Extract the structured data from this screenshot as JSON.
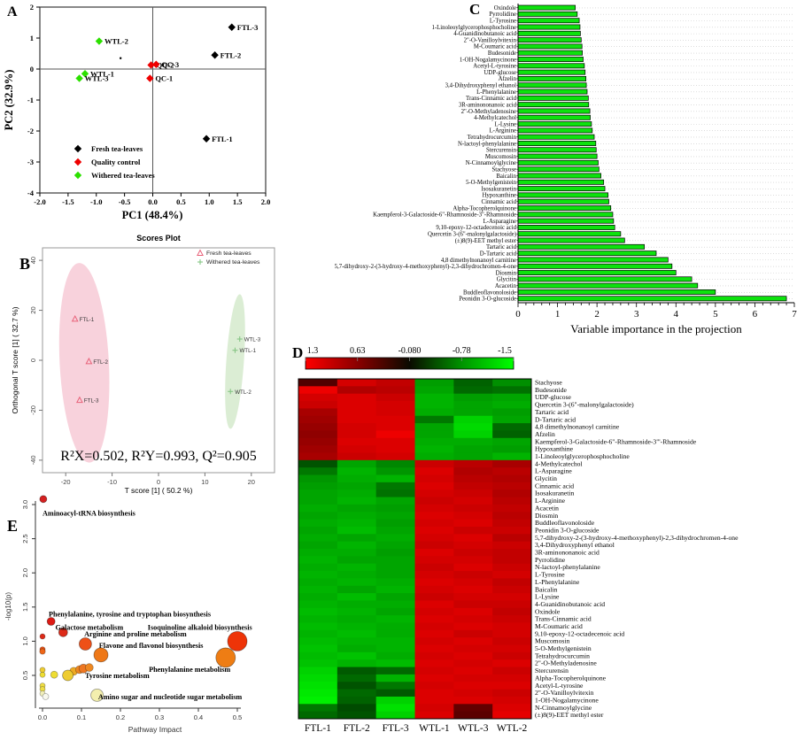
{
  "chart_data": [
    {
      "panel": "A",
      "type": "scatter",
      "xlabel": "PC1 (48.4%)",
      "ylabel": "PC2 (32.9%)",
      "xlim": [
        -2.0,
        2.0
      ],
      "ylim": [
        -4,
        2
      ],
      "xtick_labels": [
        "-2.0",
        "-1.5",
        "-1.0",
        "-0.5",
        "0.0",
        "0.5",
        "1.0",
        "1.5",
        "2.0"
      ],
      "xticks": [
        -2.0,
        -1.5,
        -1.0,
        -0.5,
        0.0,
        0.5,
        1.0,
        1.5,
        2.0
      ],
      "ytick_labels": [
        "-4",
        "-3",
        "-2",
        "-1",
        "0",
        "1",
        "2"
      ],
      "yticks": [
        -4,
        -3,
        -2,
        -1,
        0,
        1,
        2
      ],
      "legend": [
        {
          "label": "Fresh tea-leaves",
          "color": "#000000"
        },
        {
          "label": "Quality control",
          "color": "#ee0000"
        },
        {
          "label": "Withered tea-leaves",
          "color": "#2ce000"
        }
      ],
      "points": [
        {
          "label": "FTL-3",
          "x": 1.4,
          "y": 1.35,
          "color": "#000000"
        },
        {
          "label": "FTL-2",
          "x": 1.1,
          "y": 0.45,
          "color": "#000000"
        },
        {
          "label": "FTL-1",
          "x": 0.95,
          "y": -2.25,
          "color": "#000000"
        },
        {
          "label": "WTL-2",
          "x": -0.95,
          "y": 0.9,
          "color": "#2ce000"
        },
        {
          "label": "WTL-1",
          "x": -1.2,
          "y": -0.15,
          "color": "#2ce000"
        },
        {
          "label": "WTL-3",
          "x": -1.3,
          "y": -0.3,
          "color": "#2ce000"
        },
        {
          "label": "QC-2",
          "x": -0.03,
          "y": 0.13,
          "color": "#ee0000"
        },
        {
          "label": "QC-3",
          "x": 0.06,
          "y": 0.15,
          "color": "#ee0000"
        },
        {
          "label": "QC-1",
          "x": -0.05,
          "y": -0.3,
          "color": "#ee0000"
        }
      ],
      "stray_dot": {
        "x": -0.57,
        "y": 0.35
      }
    },
    {
      "panel": "B",
      "type": "scatter",
      "title": "Scores Plot",
      "xlabel": "T score [1] ( 50.2 %)",
      "ylabel": "Orthogonal T score [1] ( 32.7 %)",
      "xlim": [
        -25,
        25
      ],
      "ylim": [
        -45,
        45
      ],
      "xticks": [
        -20,
        -10,
        0,
        10,
        20
      ],
      "yticks": [
        -40,
        -20,
        0,
        20,
        40
      ],
      "annotation": "R²X=0.502, R²Y=0.993, Q²=0.905",
      "legend": [
        {
          "label": "Fresh tea-leaves",
          "marker": "triangle",
          "color": "#e8637a"
        },
        {
          "label": "Withered tea-leaves",
          "marker": "plus",
          "color": "#86c585"
        }
      ],
      "groups": {
        "FTL": {
          "marker": "triangle",
          "color": "#e8637a",
          "ellipse_fill": "#f5c3d0"
        },
        "WTL": {
          "marker": "plus",
          "color": "#86c585",
          "ellipse_fill": "#cfe7c6"
        }
      },
      "ellipses": [
        {
          "cx": -16,
          "cy": -1,
          "rx": 5.3,
          "ry": 40,
          "rot": -3,
          "fill": "#f5c3d0"
        },
        {
          "cx": 16.5,
          "cy": -0.5,
          "rx": 1.9,
          "ry": 27,
          "rot": 4,
          "fill": "#cfe7c6"
        }
      ],
      "points": [
        {
          "label": "FTL-1",
          "x": -18,
          "y": 16.5,
          "group": "FTL"
        },
        {
          "label": "FTL-2",
          "x": -15,
          "y": -0.5,
          "group": "FTL"
        },
        {
          "label": "FTL-3",
          "x": -17,
          "y": -16,
          "group": "FTL"
        },
        {
          "label": "WTL-3",
          "x": 17.5,
          "y": 8.5,
          "group": "WTL"
        },
        {
          "label": "WTL-1",
          "x": 16.5,
          "y": 4,
          "group": "WTL"
        },
        {
          "label": "WTL-2",
          "x": 15.5,
          "y": -12.5,
          "group": "WTL"
        }
      ]
    },
    {
      "panel": "C",
      "type": "bar",
      "xlabel": "Variable importance in the projection",
      "xlim": [
        0,
        7
      ],
      "xticks": [
        0,
        1,
        2,
        3,
        4,
        5,
        6,
        7
      ],
      "bar_color": "#0de20d",
      "categories": [
        "Oxindole",
        "Pyrrolidine",
        "L-Tyrosine",
        "1-Linoleoylglycerophosphocholine",
        "4-Guanidinobutanoic acid",
        "2\"-O-Vanilloylvitexin",
        "M-Coumaric acid",
        "Budesonide",
        "1-OH-Nogalamycinone",
        "Acetyl-L-tyrosine",
        "UDP-glucose",
        "Afzelin",
        "3,4-Dihydroxyphenyl ethanol",
        "L-Phenylalanine",
        "Trans-Cinnamic acid",
        "3R-aminononanoic acid",
        "2\"-O-Methyladenosine",
        "4-Methylcatechol",
        "L-Lysine",
        "L-Arginine",
        "Tetrahydrocurcumin",
        "N-lactoyl-phenylalanine",
        "Stercurensin",
        "Muscomosin",
        "N-Cinnamoylglycine",
        "Stachyose",
        "Baicalin",
        "5-O-Methylgenistein",
        "Isosakuranetin",
        "Hypoxanthine",
        "Cinnamic acid",
        "Alpha-Tocopherolquinone",
        "Kaempferol-3-Galactoside-6\"-Rhamnoside-3\"-Rhamnoside",
        "L-Asparagine",
        "9,10-epoxy-12-octadecenoic acid",
        "Quercetin 3-(6\"-malonylgalactoside)",
        "(±)8(9)-EET methyl ester",
        "Tartaric acid",
        "D-Tartaric acid",
        "4,8 dimethylnonanoyl carnitine",
        "5,7-dihydroxy-2-(3-hydroxy-4-methoxyphenyl)-2,3-dihydrochromen-4-one",
        "Diosmin",
        "Glycitin",
        "Acacetin",
        "Buddleoflavonoloside",
        "Peonidin 3-O-glucoside"
      ],
      "values": [
        1.45,
        1.5,
        1.55,
        1.57,
        1.58,
        1.6,
        1.62,
        1.63,
        1.65,
        1.68,
        1.7,
        1.72,
        1.73,
        1.75,
        1.78,
        1.79,
        1.82,
        1.83,
        1.86,
        1.88,
        1.93,
        1.97,
        1.98,
        2.0,
        2.03,
        2.05,
        2.1,
        2.17,
        2.2,
        2.28,
        2.3,
        2.35,
        2.4,
        2.42,
        2.45,
        2.6,
        2.7,
        3.2,
        3.5,
        3.8,
        3.9,
        4.0,
        4.4,
        4.55,
        5.0,
        6.8
      ]
    },
    {
      "panel": "D",
      "type": "heatmap",
      "scale_tick_labels": [
        "1.3",
        "0.63",
        "-0.080",
        "-0.78",
        "-1.5"
      ],
      "vmax": 1.3,
      "vmin": -1.5,
      "columns": [
        "FTL-1",
        "FTL-2",
        "FTL-3",
        "WTL-1",
        "WTL-3",
        "WTL-2"
      ],
      "rows": [
        "Stachyose",
        "Budesonide",
        "UDP-glucose",
        "Quercetin 3-(6\"-malonylgalactoside)",
        "Tartaric acid",
        "D-Tartaric acid",
        "4,8 dimethylnonanoyl carnitine",
        "Afzelin",
        "Kaempferol-3-Galactoside-6\"-Rhamnoside-3\"'-Rhamnoside",
        "Hypoxanthine",
        "1-Linoleoylglycerophosphocholine",
        "4-Methylcatechol",
        "L-Asparagine",
        "Glycitin",
        "Cinnamic acid",
        "Isosakuranetin",
        "L-Arginine",
        "Acacetin",
        "Diosmin",
        "Buddleoflavonoloside",
        "Peonidin 3-O-glucoside",
        "5,7-dihydroxy-2-(3-hydroxy-4-methoxyphenyl)-2,3-dihydrochromen-4-one",
        "3,4-Dihydroxyphenyl ethanol",
        "3R-aminononanoic acid",
        "Pyrrolidine",
        "N-lactoyl-phenylalanine",
        "L-Tyrosine",
        "L-Phenylalanine",
        "Baicalin",
        "L-Lysine",
        "4-Guanidinobutanoic acid",
        "Oxindole",
        "Trans-Cinnamic acid",
        "M-Coumaric acid",
        "9,10-epoxy-12-octadecenoic acid",
        "Muscomosin",
        "5-O-Methylgenistein",
        "Tetrahydrocurcumin",
        "2\"-O-Methyladenosine",
        "Stercurensin",
        "Alpha-Tocopherolquinone",
        "Acetyl-L-tyrosine",
        "2\"-O-Vanilloylvitexin",
        "1-OH-Nogalamycinone",
        "N-Cinnamoylglycine",
        "(±)8(9)-EET methyl ester"
      ],
      "matrix": [
        [
          0.3,
          1.05,
          0.95,
          -0.85,
          -0.45,
          -0.75
        ],
        [
          1.2,
          0.85,
          0.9,
          -0.9,
          -0.5,
          -0.55
        ],
        [
          1.05,
          1.1,
          1.0,
          -1.0,
          -0.85,
          -0.9
        ],
        [
          1.0,
          1.1,
          1.05,
          -1.0,
          -0.9,
          -0.95
        ],
        [
          0.8,
          1.1,
          1.05,
          -0.95,
          -0.9,
          -0.85
        ],
        [
          0.75,
          1.1,
          1.1,
          -0.6,
          -1.2,
          -0.9
        ],
        [
          0.7,
          1.05,
          1.1,
          -0.9,
          -1.25,
          -0.5
        ],
        [
          0.65,
          1.05,
          1.2,
          -0.9,
          -1.2,
          -0.45
        ],
        [
          0.7,
          1.1,
          1.1,
          -0.95,
          -0.95,
          -0.9
        ],
        [
          0.75,
          1.05,
          1.1,
          -1.0,
          -0.9,
          -0.85
        ],
        [
          0.8,
          1.0,
          1.05,
          -0.95,
          -0.9,
          -1.0
        ],
        [
          -0.35,
          -0.9,
          -0.7,
          1.0,
          0.9,
          0.8
        ],
        [
          -0.6,
          -1.0,
          -0.8,
          1.1,
          0.85,
          0.9
        ],
        [
          -0.8,
          -0.95,
          -1.0,
          1.05,
          0.9,
          0.85
        ],
        [
          -0.85,
          -0.9,
          -0.6,
          1.1,
          0.95,
          0.9
        ],
        [
          -0.9,
          -0.95,
          -0.55,
          1.05,
          1.0,
          0.85
        ],
        [
          -0.9,
          -1.0,
          -0.9,
          1.0,
          1.05,
          0.9
        ],
        [
          -0.95,
          -0.9,
          -0.85,
          1.05,
          1.0,
          0.95
        ],
        [
          -0.9,
          -0.95,
          -0.9,
          1.1,
          1.05,
          0.9
        ],
        [
          -0.95,
          -1.0,
          -0.85,
          1.05,
          1.1,
          0.95
        ],
        [
          -0.9,
          -1.05,
          -0.9,
          1.1,
          1.0,
          1.0
        ],
        [
          -0.95,
          -0.9,
          -0.95,
          1.05,
          1.1,
          0.9
        ],
        [
          -0.9,
          -1.0,
          -0.9,
          1.0,
          1.05,
          1.0
        ],
        [
          -0.95,
          -0.95,
          -0.85,
          1.1,
          1.0,
          0.95
        ],
        [
          -1.0,
          -0.9,
          -0.9,
          1.05,
          1.05,
          0.95
        ],
        [
          -0.95,
          -1.0,
          -0.9,
          1.0,
          1.1,
          1.0
        ],
        [
          -1.0,
          -0.95,
          -0.9,
          1.05,
          1.0,
          1.05
        ],
        [
          -0.95,
          -1.0,
          -0.95,
          1.1,
          1.05,
          0.95
        ],
        [
          -1.0,
          -0.9,
          -1.0,
          1.05,
          1.1,
          1.0
        ],
        [
          -0.95,
          -1.05,
          -0.9,
          1.0,
          1.05,
          1.05
        ],
        [
          -1.0,
          -0.95,
          -0.95,
          1.1,
          1.0,
          1.0
        ],
        [
          -1.05,
          -1.0,
          -0.9,
          1.05,
          1.1,
          0.95
        ],
        [
          -1.0,
          -0.95,
          -1.0,
          1.1,
          1.05,
          1.0
        ],
        [
          -1.05,
          -1.0,
          -0.95,
          1.05,
          1.1,
          1.05
        ],
        [
          -1.0,
          -1.05,
          -0.95,
          1.1,
          1.0,
          1.05
        ],
        [
          -1.05,
          -1.0,
          -1.0,
          1.05,
          1.1,
          1.0
        ],
        [
          -1.1,
          -0.95,
          -1.0,
          1.1,
          1.05,
          1.05
        ],
        [
          -1.05,
          -1.1,
          -0.95,
          1.05,
          1.1,
          1.0
        ],
        [
          -1.1,
          -1.0,
          -1.05,
          1.1,
          1.05,
          1.1
        ],
        [
          -1.2,
          -0.4,
          -0.5,
          1.05,
          1.1,
          1.0
        ],
        [
          -1.25,
          -0.5,
          -1.0,
          1.1,
          1.05,
          1.05
        ],
        [
          -1.3,
          -0.35,
          -0.6,
          1.05,
          1.1,
          1.1
        ],
        [
          -1.35,
          -0.5,
          -0.4,
          1.1,
          1.05,
          1.0
        ],
        [
          -1.4,
          -0.45,
          -1.2,
          1.1,
          1.1,
          1.05
        ],
        [
          -0.6,
          -0.3,
          -1.3,
          1.05,
          0.4,
          1.1
        ],
        [
          -0.5,
          -0.35,
          -1.2,
          1.1,
          0.35,
          1.15
        ]
      ]
    },
    {
      "panel": "E",
      "type": "scatter",
      "xlabel": "Pathway Impact",
      "ylabel": "-log10(p)",
      "xlim": [
        0,
        0.55
      ],
      "ylim": [
        0,
        3.2
      ],
      "xtick_labels": [
        "0.0",
        "0.1",
        "0.2",
        "0.3",
        "0.4",
        "0.5"
      ],
      "xticks": [
        0.0,
        0.1,
        0.2,
        0.3,
        0.4,
        0.5
      ],
      "ytick_labels": [
        "0.5",
        "1.0",
        "1.5",
        "2.0",
        "2.5",
        "3.0"
      ],
      "yticks": [
        0.5,
        1.0,
        1.5,
        2.0,
        2.5,
        3.0
      ],
      "labeled_points": [
        {
          "label": "Aminoacyl-tRNA biosynthesis",
          "x": 0.002,
          "y": 3.08,
          "r": 4,
          "color": "#d42020",
          "lx": 0.0,
          "ly": 2.84
        },
        {
          "label": "Phenylalanine, tyrosine and tryptophan biosynthesis",
          "x": 0.022,
          "y": 1.29,
          "r": 4.5,
          "color": "#dd1a14",
          "lx": 0.016,
          "ly": 1.36
        },
        {
          "label": "Galactose metabolism",
          "x": 0.053,
          "y": 1.13,
          "r": 5,
          "color": "#dd2a18",
          "lx": 0.033,
          "ly": 1.17
        },
        {
          "label": "Isoquinoline alkaloid biosynthesis",
          "x": 0.5,
          "y": 1.0,
          "r": 11,
          "color": "#ee3408",
          "lx": 0.27,
          "ly": 1.165
        },
        {
          "label": "Arginine and proline metabolism",
          "x": 0.11,
          "y": 0.96,
          "r": 7,
          "color": "#ee5018",
          "lx": 0.107,
          "ly": 1.07
        },
        {
          "label": "Flavone and flavonol biosynthesis",
          "x": 0.15,
          "y": 0.8,
          "r": 8,
          "color": "#ee7818",
          "lx": 0.145,
          "ly": 0.9
        },
        {
          "label": "Phenylalanine metabolism",
          "x": 0.47,
          "y": 0.76,
          "r": 11,
          "color": "#ee7d14",
          "lx": 0.273,
          "ly": 0.552
        },
        {
          "label": "Tyrosine metabolism",
          "x": 0.065,
          "y": 0.5,
          "r": 6,
          "color": "#eecc30",
          "lx": 0.109,
          "ly": 0.462
        },
        {
          "label": "Amino sugar and nucleotide sugar metabolism",
          "x": 0.14,
          "y": 0.21,
          "r": 7,
          "color": "#f3efae",
          "lx": 0.143,
          "ly": 0.152
        }
      ],
      "unlabeled_points": [
        {
          "x": 0.0,
          "y": 1.07,
          "r": 3,
          "color": "#dd2a18"
        },
        {
          "x": 0.0,
          "y": 0.88,
          "r": 3,
          "color": "#ee5518"
        },
        {
          "x": 0.0,
          "y": 0.85,
          "r": 3.2,
          "color": "#ee6618"
        },
        {
          "x": 0.0,
          "y": 0.58,
          "r": 3,
          "color": "#eecc30"
        },
        {
          "x": 0.0,
          "y": 0.51,
          "r": 3,
          "color": "#eedd33"
        },
        {
          "x": 0.03,
          "y": 0.51,
          "r": 4,
          "color": "#eedd33"
        },
        {
          "x": 0.08,
          "y": 0.56,
          "r": 4.5,
          "color": "#eeaa22"
        },
        {
          "x": 0.095,
          "y": 0.585,
          "r": 4.5,
          "color": "#ee8822"
        },
        {
          "x": 0.105,
          "y": 0.6,
          "r": 5,
          "color": "#ee7722"
        },
        {
          "x": 0.12,
          "y": 0.615,
          "r": 4.5,
          "color": "#ee8822"
        },
        {
          "x": 0.0,
          "y": 0.35,
          "r": 3,
          "color": "#eedd44"
        },
        {
          "x": 0.0,
          "y": 0.3,
          "r": 3,
          "color": "#eedd44"
        },
        {
          "x": 0.0,
          "y": 0.235,
          "r": 3,
          "color": "#f0eebb"
        },
        {
          "x": 0.008,
          "y": 0.19,
          "r": 3.5,
          "color": "#f8f8ee"
        }
      ]
    }
  ],
  "panel_letters": {
    "a": "A",
    "b": "B",
    "c": "C",
    "d": "D",
    "e": "E"
  }
}
